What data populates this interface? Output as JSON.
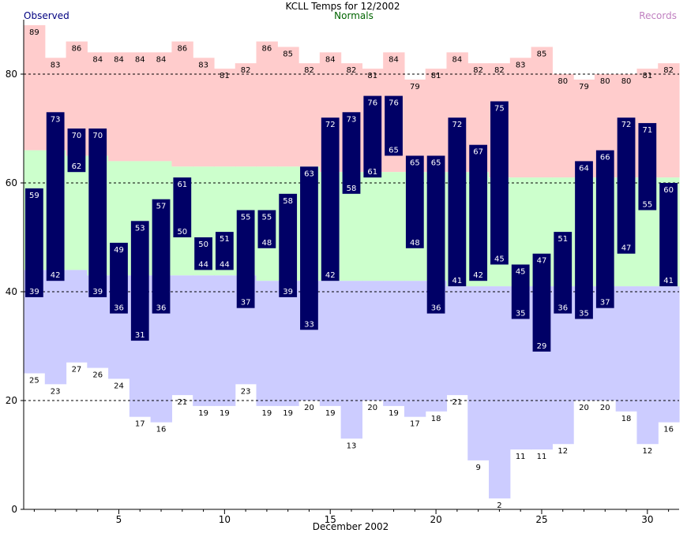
{
  "chart_data": {
    "type": "bar",
    "title": "KCLL Temps for 12/2002",
    "xlabel": "December 2002",
    "ylabel": "",
    "legend": {
      "observed": "Observed",
      "normals": "Normals",
      "records": "Records"
    },
    "ylim": [
      0,
      90
    ],
    "yticks": [
      0,
      20,
      40,
      60,
      80
    ],
    "xticks": [
      5,
      10,
      15,
      20,
      25,
      30
    ],
    "grid": "dashed at 20, 40, 60, 80",
    "colors": {
      "observed": "#000066",
      "normal_band": "#ccffcc",
      "record_high_band": "#ffcccc",
      "record_low_band": "#ccccff",
      "observed_legend": "#000080",
      "normals_legend": "#006400",
      "records_legend": "#c080c0"
    },
    "days": [
      1,
      2,
      3,
      4,
      5,
      6,
      7,
      8,
      9,
      10,
      11,
      12,
      13,
      14,
      15,
      16,
      17,
      18,
      19,
      20,
      21,
      22,
      23,
      24,
      25,
      26,
      27,
      28,
      29,
      30,
      31
    ],
    "observed_high": [
      59,
      73,
      70,
      70,
      49,
      53,
      57,
      61,
      50,
      51,
      55,
      55,
      58,
      63,
      72,
      73,
      76,
      76,
      65,
      65,
      72,
      67,
      75,
      45,
      47,
      51,
      64,
      66,
      72,
      71,
      60
    ],
    "observed_low": [
      39,
      42,
      62,
      39,
      36,
      31,
      36,
      50,
      44,
      44,
      37,
      48,
      39,
      33,
      42,
      58,
      61,
      65,
      48,
      36,
      41,
      42,
      45,
      35,
      29,
      36,
      35,
      37,
      47,
      55,
      41
    ],
    "record_high": [
      89,
      83,
      86,
      84,
      84,
      84,
      84,
      86,
      83,
      81,
      82,
      86,
      85,
      82,
      84,
      82,
      81,
      84,
      79,
      81,
      84,
      82,
      82,
      83,
      85,
      80,
      79,
      80,
      80,
      81,
      82
    ],
    "record_low": [
      25,
      23,
      27,
      26,
      24,
      17,
      16,
      21,
      19,
      19,
      23,
      19,
      19,
      20,
      19,
      13,
      20,
      19,
      17,
      18,
      21,
      9,
      2,
      11,
      11,
      12,
      20,
      20,
      18,
      12,
      16
    ],
    "normal_high": [
      66,
      66,
      65,
      65,
      64,
      64,
      64,
      63,
      63,
      63,
      63,
      63,
      63,
      63,
      62,
      62,
      62,
      62,
      62,
      62,
      62,
      62,
      61,
      61,
      61,
      61,
      61,
      61,
      61,
      61,
      61
    ],
    "normal_low": [
      44,
      44,
      44,
      43,
      43,
      43,
      43,
      43,
      43,
      43,
      43,
      42,
      42,
      42,
      42,
      42,
      42,
      42,
      42,
      42,
      41,
      41,
      41,
      41,
      41,
      41,
      41,
      41,
      41,
      41,
      41
    ]
  }
}
